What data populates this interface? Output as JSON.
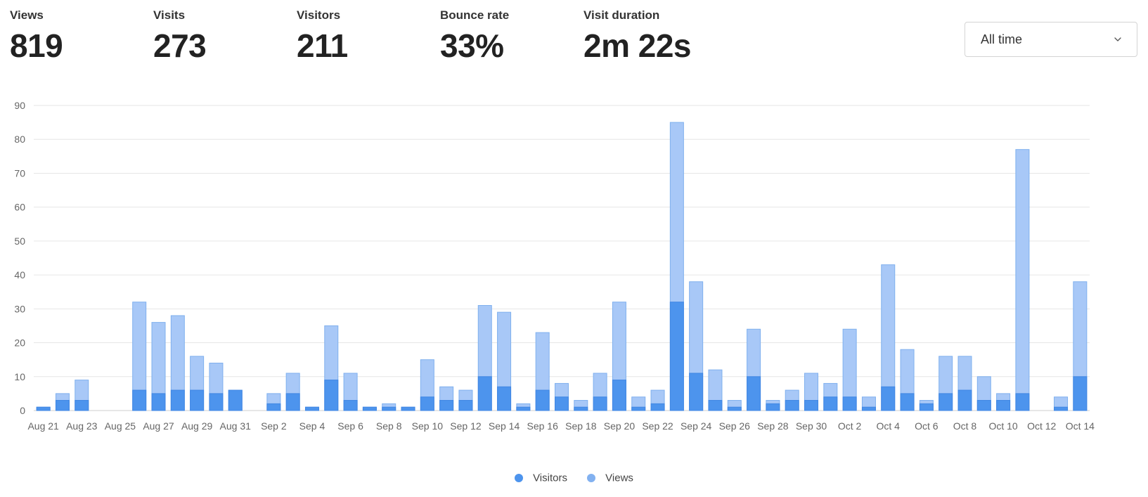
{
  "metrics": [
    {
      "label": "Views",
      "value": "819"
    },
    {
      "label": "Visits",
      "value": "273"
    },
    {
      "label": "Visitors",
      "value": "211"
    },
    {
      "label": "Bounce rate",
      "value": "33%"
    },
    {
      "label": "Visit duration",
      "value": "2m 22s"
    }
  ],
  "range_select": {
    "value": "All time",
    "icon": "chevron-down-icon"
  },
  "colors": {
    "visitors": "#4d94ed",
    "views": "#a8c8f7",
    "views_legend": "#82b1f0",
    "grid": "#e6e6e6",
    "axis_text": "#666666"
  },
  "chart_data": {
    "type": "bar",
    "stacked": "overlay",
    "ylim": [
      0,
      90
    ],
    "yticks": [
      0,
      10,
      20,
      30,
      40,
      50,
      60,
      70,
      80,
      90
    ],
    "grid": true,
    "legend_position": "bottom",
    "x": [
      "Aug 21",
      "Aug 22",
      "Aug 23",
      "Aug 24",
      "Aug 25",
      "Aug 26",
      "Aug 27",
      "Aug 28",
      "Aug 29",
      "Aug 30",
      "Aug 31",
      "Sep 1",
      "Sep 2",
      "Sep 3",
      "Sep 4",
      "Sep 5",
      "Sep 6",
      "Sep 7",
      "Sep 8",
      "Sep 9",
      "Sep 10",
      "Sep 11",
      "Sep 12",
      "Sep 13",
      "Sep 14",
      "Sep 15",
      "Sep 16",
      "Sep 17",
      "Sep 18",
      "Sep 19",
      "Sep 20",
      "Sep 21",
      "Sep 22",
      "Sep 23",
      "Sep 24",
      "Sep 25",
      "Sep 26",
      "Sep 27",
      "Sep 28",
      "Sep 29",
      "Sep 30",
      "Oct 1",
      "Oct 2",
      "Oct 3",
      "Oct 4",
      "Oct 5",
      "Oct 6",
      "Oct 7",
      "Oct 8",
      "Oct 9",
      "Oct 10",
      "Oct 11",
      "Oct 12",
      "Oct 13",
      "Oct 14"
    ],
    "xtick_labels": [
      "Aug 21",
      "Aug 23",
      "Aug 25",
      "Aug 27",
      "Aug 29",
      "Aug 31",
      "Sep 2",
      "Sep 4",
      "Sep 6",
      "Sep 8",
      "Sep 10",
      "Sep 12",
      "Sep 14",
      "Sep 16",
      "Sep 18",
      "Sep 20",
      "Sep 22",
      "Sep 24",
      "Sep 26",
      "Sep 28",
      "Sep 30",
      "Oct 2",
      "Oct 4",
      "Oct 6",
      "Oct 8",
      "Oct 10",
      "Oct 12",
      "Oct 14"
    ],
    "series": [
      {
        "name": "Visitors",
        "values": [
          1,
          3,
          3,
          0,
          0,
          6,
          5,
          6,
          6,
          5,
          6,
          0,
          2,
          5,
          1,
          9,
          3,
          1,
          1,
          1,
          4,
          3,
          3,
          10,
          7,
          1,
          6,
          4,
          1,
          4,
          9,
          1,
          2,
          32,
          11,
          3,
          1,
          10,
          2,
          3,
          3,
          4,
          4,
          1,
          7,
          5,
          2,
          5,
          6,
          3,
          3,
          5,
          0,
          1,
          10
        ]
      },
      {
        "name": "Views",
        "values": [
          1,
          5,
          9,
          0,
          0,
          32,
          26,
          28,
          16,
          14,
          6,
          0,
          5,
          11,
          1,
          25,
          11,
          1,
          2,
          1,
          15,
          7,
          6,
          31,
          29,
          2,
          23,
          8,
          3,
          11,
          32,
          4,
          6,
          85,
          38,
          12,
          3,
          24,
          3,
          6,
          11,
          8,
          24,
          4,
          43,
          18,
          3,
          16,
          16,
          10,
          5,
          77,
          0,
          4,
          38
        ]
      }
    ]
  }
}
